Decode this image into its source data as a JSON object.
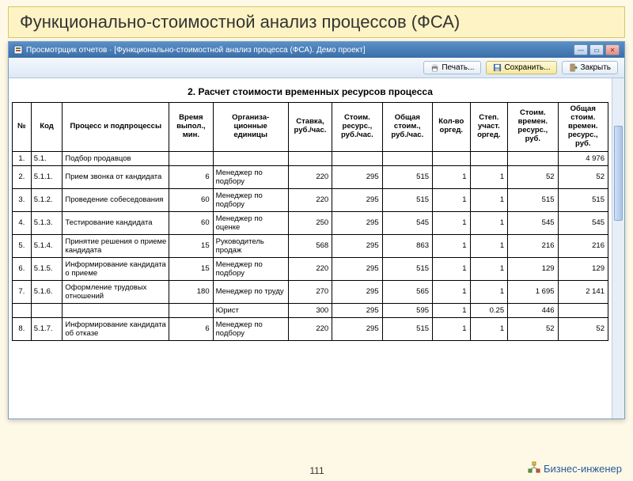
{
  "slide": {
    "title": "Функционально-стоимостной анализ процессов (ФСА)"
  },
  "window": {
    "title": "Просмотрщик отчетов  ·  [Функционально-стоимостной анализ процесса (ФСА). Демо проект]"
  },
  "toolbar": {
    "print": "Печать...",
    "save": "Сохранить...",
    "close": "Закрыть"
  },
  "report": {
    "title": "2. Расчет стоимости временных ресурсов процесса"
  },
  "table": {
    "headers": {
      "n": "№",
      "code": "Код",
      "process": "Процесс и подпроцессы",
      "time": "Время\nвыпол.,\nмин.",
      "orgunit": "Организа-\nционные\nединицы",
      "rate": "Ставка,\nруб./час.",
      "res_cost": "Стоим.\nресурс.,\nруб./час.",
      "total_cost": "Общая\nстоим.,\nруб./час.",
      "qty": "Кол-во\nоргед.",
      "part": "Степ.\nучаст.\nоргед.",
      "time_res_cost": "Стоим.\nвремен.\nресурс.,\nруб.",
      "total_time_res": "Общая\nстоим.\nвремен.\nресурс.,\nруб."
    },
    "col_widths": [
      "3%",
      "5%",
      "17%",
      "7%",
      "12%",
      "7%",
      "8%",
      "8%",
      "6%",
      "6%",
      "8%",
      "8%"
    ],
    "rows": [
      {
        "n": "1.",
        "code": "5.1.",
        "process": "Подбор продавцов",
        "time": "",
        "org": "",
        "rate": "",
        "res": "",
        "total": "",
        "qty": "",
        "part": "",
        "trc": "",
        "ttr": "4 976"
      },
      {
        "n": "2.",
        "code": "5.1.1.",
        "process": "Прием звонка от кандидата",
        "time": "6",
        "org": "Менеджер по подбору",
        "rate": "220",
        "res": "295",
        "total": "515",
        "qty": "1",
        "part": "1",
        "trc": "52",
        "ttr": "52"
      },
      {
        "n": "3.",
        "code": "5.1.2.",
        "process": "Проведение собеседования",
        "time": "60",
        "org": "Менеджер по подбору",
        "rate": "220",
        "res": "295",
        "total": "515",
        "qty": "1",
        "part": "1",
        "trc": "515",
        "ttr": "515"
      },
      {
        "n": "4.",
        "code": "5.1.3.",
        "process": "Тестирование кандидата",
        "time": "60",
        "org": "Менеджер по оценке",
        "rate": "250",
        "res": "295",
        "total": "545",
        "qty": "1",
        "part": "1",
        "trc": "545",
        "ttr": "545"
      },
      {
        "n": "5.",
        "code": "5.1.4.",
        "process": "Принятие решения о приеме кандидата",
        "time": "15",
        "org": "Руководитель продаж",
        "rate": "568",
        "res": "295",
        "total": "863",
        "qty": "1",
        "part": "1",
        "trc": "216",
        "ttr": "216"
      },
      {
        "n": "6.",
        "code": "5.1.5.",
        "process": "Информирование кандидата о приеме",
        "time": "15",
        "org": "Менеджер по подбору",
        "rate": "220",
        "res": "295",
        "total": "515",
        "qty": "1",
        "part": "1",
        "trc": "129",
        "ttr": "129"
      },
      {
        "n": "7.",
        "code": "5.1.6.",
        "process": "Оформление трудовых отношений",
        "time": "180",
        "org": "Менеджер по труду",
        "rate": "270",
        "res": "295",
        "total": "565",
        "qty": "1",
        "part": "1",
        "trc": "1 695",
        "ttr": "2 141"
      },
      {
        "n": "",
        "code": "",
        "process": "",
        "time": "",
        "org": "Юрист",
        "rate": "300",
        "res": "295",
        "total": "595",
        "qty": "1",
        "part": "0.25",
        "trc": "446",
        "ttr": ""
      },
      {
        "n": "8.",
        "code": "5.1.7.",
        "process": "Информирование кандидата об отказе",
        "time": "6",
        "org": "Менеджер по подбору",
        "rate": "220",
        "res": "295",
        "total": "515",
        "qty": "1",
        "part": "1",
        "trc": "52",
        "ttr": "52"
      }
    ]
  },
  "footer": {
    "page": "111",
    "brand": "Бизнес-инженер"
  },
  "colors": {
    "slide_bg": "#fef9e6",
    "title_bg": "#fdf3c4",
    "titlebar_from": "#5a8fc7",
    "titlebar_to": "#3b6ea8",
    "brand_color": "#2a5a9a"
  }
}
